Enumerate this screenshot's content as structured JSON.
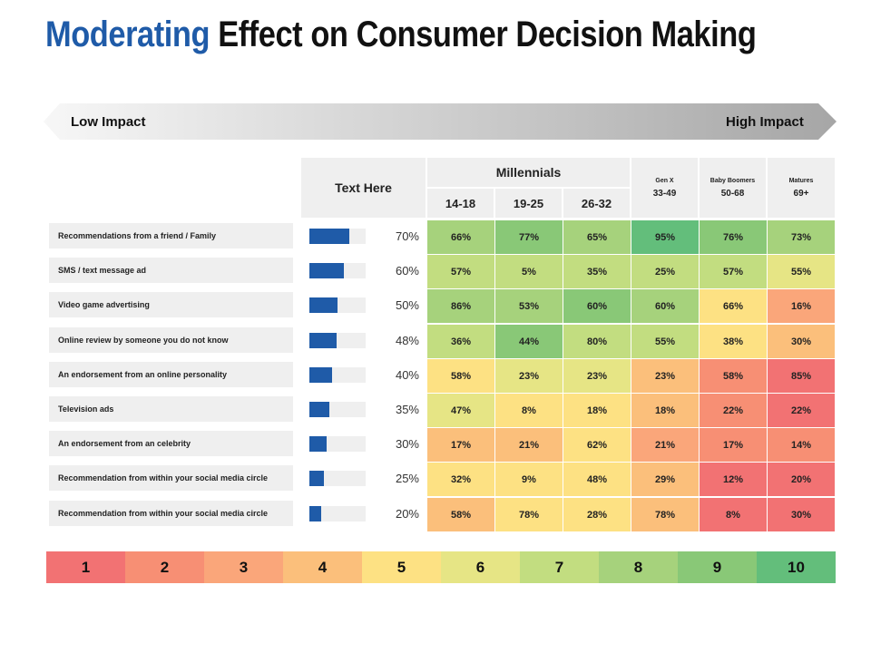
{
  "title": {
    "accent": "Moderating",
    "rest": "Effect on Consumer Decision Making"
  },
  "impact": {
    "low": "Low Impact",
    "high": "High Impact"
  },
  "header": {
    "text_here": "Text Here",
    "millennials": "Millennials",
    "ages": [
      "14-18",
      "19-25",
      "26-32"
    ],
    "genx": {
      "name": "Gen X",
      "range": "33-49"
    },
    "boomers": {
      "name": "Baby Boomers",
      "range": "50-68"
    },
    "matures": {
      "name": "Matures",
      "range": "69+"
    }
  },
  "chart_data": {
    "type": "heatmap",
    "title": "Moderating Effect on Consumer Decision Making",
    "columns": [
      "14-18",
      "19-25",
      "26-32",
      "Gen X 33-49",
      "Baby Boomers 50-68",
      "Matures 69+"
    ],
    "rows": [
      {
        "label": "Recommendations from a friend / Family",
        "overall": 70,
        "overall_label": "70%",
        "values": [
          "66%",
          "77%",
          "65%",
          "95%",
          "76%",
          "73%"
        ],
        "scores": [
          8,
          9,
          8,
          10,
          9,
          8
        ]
      },
      {
        "label": "SMS / text message ad",
        "overall": 60,
        "overall_label": "60%",
        "values": [
          "57%",
          "5%",
          "35%",
          "25%",
          "57%",
          "55%"
        ],
        "scores": [
          7,
          7,
          7,
          7,
          7,
          6
        ]
      },
      {
        "label": "Video game advertising",
        "overall": 50,
        "overall_label": "50%",
        "values": [
          "86%",
          "53%",
          "60%",
          "60%",
          "66%",
          "16%"
        ],
        "scores": [
          8,
          8,
          9,
          8,
          5,
          3
        ]
      },
      {
        "label": "Online review by someone you do not know",
        "overall": 48,
        "overall_label": "48%",
        "values": [
          "36%",
          "44%",
          "80%",
          "55%",
          "38%",
          "30%"
        ],
        "scores": [
          7,
          9,
          7,
          7,
          5,
          4
        ]
      },
      {
        "label": "An endorsement from an online personality",
        "overall": 40,
        "overall_label": "40%",
        "values": [
          "58%",
          "23%",
          "23%",
          "23%",
          "58%",
          "85%"
        ],
        "scores": [
          5,
          6,
          6,
          4,
          2,
          1
        ]
      },
      {
        "label": "Television ads",
        "overall": 35,
        "overall_label": "35%",
        "values": [
          "47%",
          "8%",
          "18%",
          "18%",
          "22%",
          "22%"
        ],
        "scores": [
          6,
          5,
          5,
          4,
          2,
          1
        ]
      },
      {
        "label": "An endorsement from an celebrity",
        "overall": 30,
        "overall_label": "30%",
        "values": [
          "17%",
          "21%",
          "62%",
          "21%",
          "17%",
          "14%"
        ],
        "scores": [
          4,
          4,
          5,
          3,
          2,
          2
        ]
      },
      {
        "label": "Recommendation from within your social media circle",
        "overall": 25,
        "overall_label": "25%",
        "values": [
          "32%",
          "9%",
          "48%",
          "29%",
          "12%",
          "20%"
        ],
        "scores": [
          5,
          5,
          5,
          4,
          1,
          1
        ]
      },
      {
        "label": "Recommendation from within your social media circle",
        "overall": 20,
        "overall_label": "20%",
        "values": [
          "58%",
          "78%",
          "28%",
          "78%",
          "8%",
          "30%"
        ],
        "scores": [
          4,
          5,
          5,
          4,
          1,
          1
        ]
      }
    ],
    "scale": [
      "1",
      "2",
      "3",
      "4",
      "5",
      "6",
      "7",
      "8",
      "9",
      "10"
    ],
    "scale_colors": [
      "#f27273",
      "#f78f74",
      "#faa67a",
      "#fbbf7b",
      "#fde183",
      "#e6e585",
      "#c2dd80",
      "#a6d27c",
      "#89c877",
      "#63be7b"
    ]
  }
}
